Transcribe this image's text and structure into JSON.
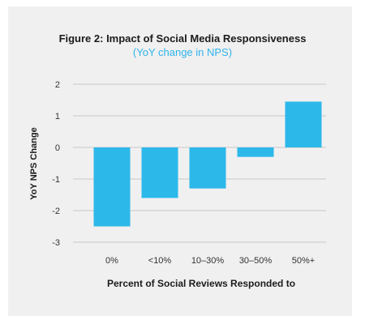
{
  "chart_data": {
    "type": "bar",
    "title": "Figure 2: Impact of Social Media Responsiveness",
    "subtitle": "(YoY change in NPS)",
    "xlabel": "Percent of Social Reviews Responded to",
    "ylabel": "YoY NPS Change",
    "categories": [
      "0%",
      "<10%",
      "10–30%",
      "30–50%",
      "50%+"
    ],
    "values": [
      -2.5,
      -1.6,
      -1.3,
      -0.3,
      1.45
    ],
    "ylim": [
      -3,
      2
    ],
    "yticks": [
      2,
      1,
      0,
      -1,
      -2,
      -3
    ],
    "grid": true,
    "bar_color": "#2db8ea",
    "grid_color": "#c9c9c9"
  }
}
